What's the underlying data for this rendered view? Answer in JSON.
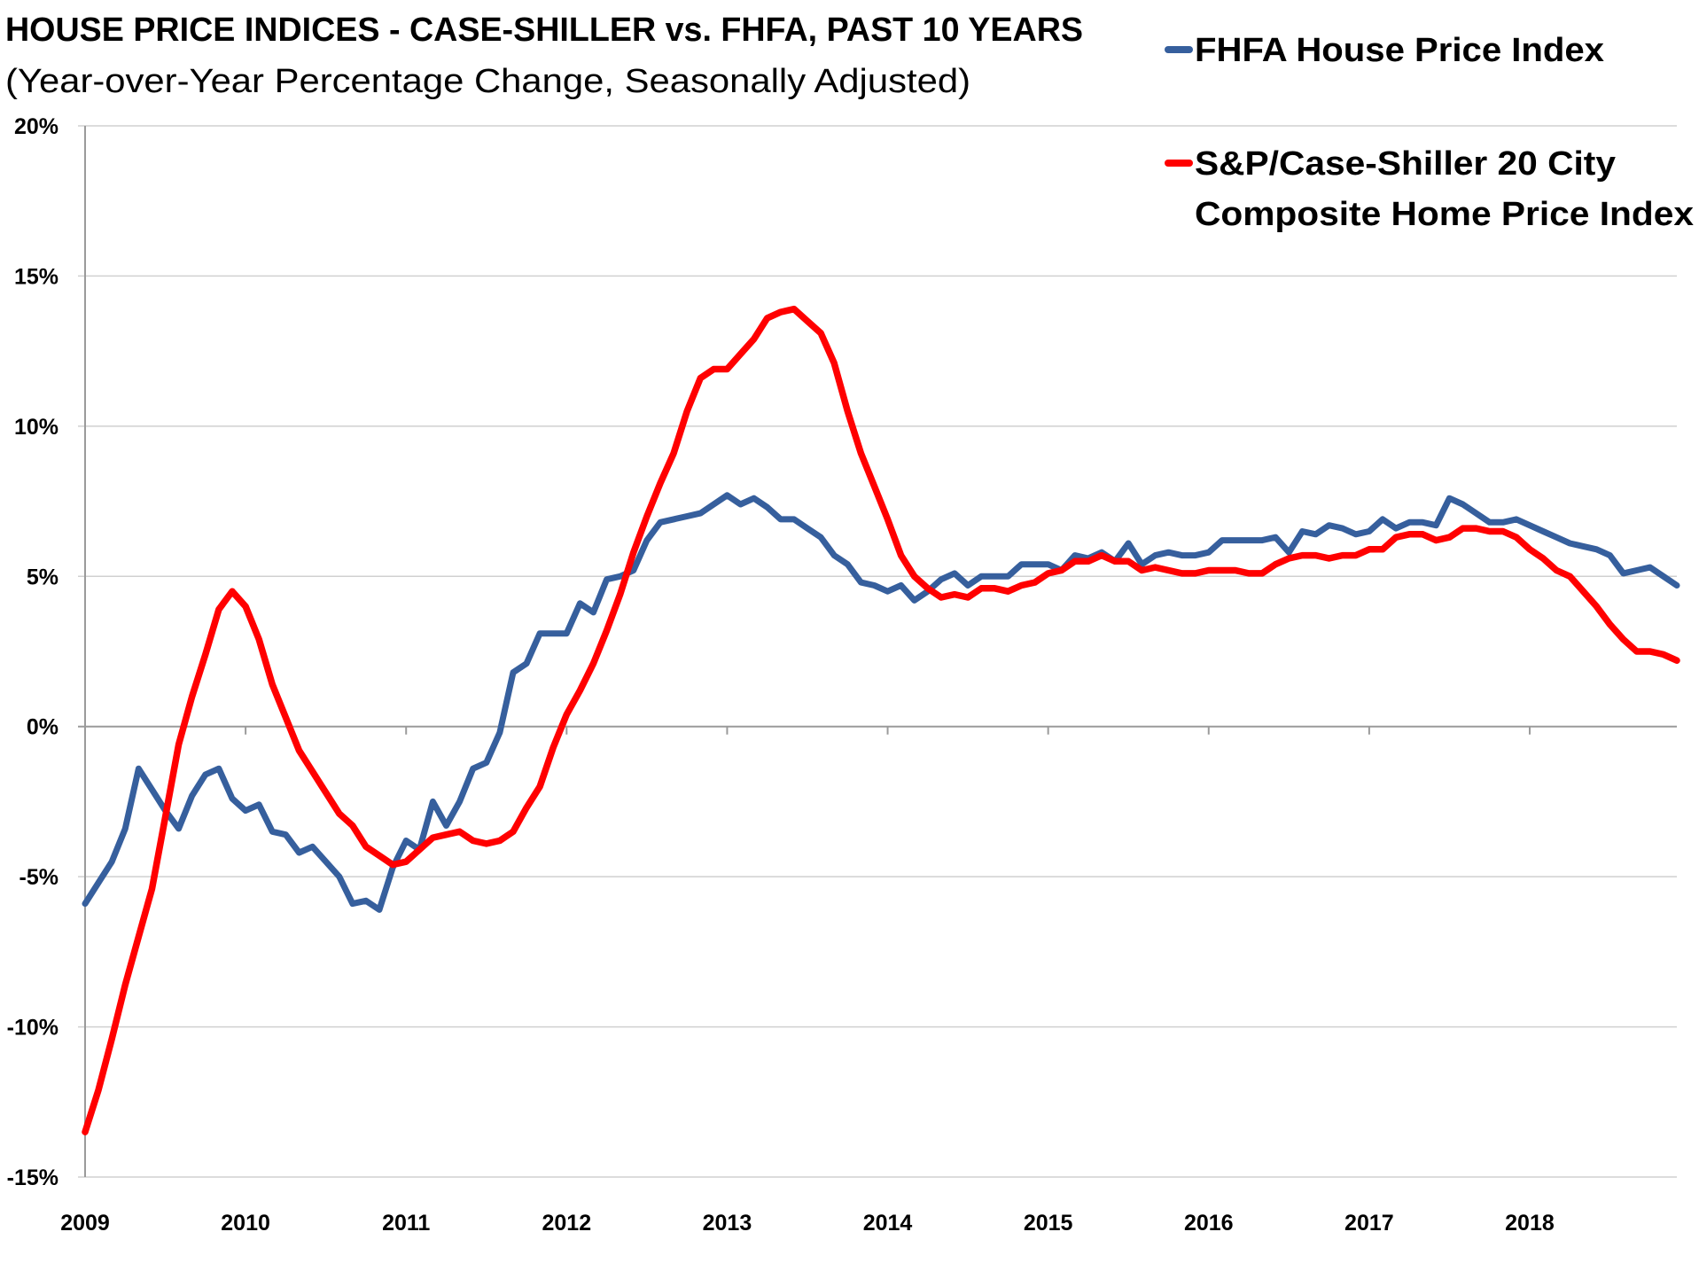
{
  "chart_data": {
    "type": "line",
    "title": "HOUSE PRICE INDICES - CASE-SHILLER vs. FHFA, PAST 10 YEARS",
    "subtitle": "(Year-over-Year Percentage Change, Seasonally Adjusted)",
    "xlabel": "",
    "ylabel": "",
    "x_start": "2009-01",
    "x_frequency": "monthly",
    "x_tick_labels": [
      "2009",
      "2010",
      "2011",
      "2012",
      "2013",
      "2014",
      "2015",
      "2016",
      "2017",
      "2018"
    ],
    "y_tick_labels": [
      "20%",
      "15%",
      "10%",
      "5%",
      "0%",
      "-5%",
      "-10%",
      "-15%"
    ],
    "y_ticks": [
      20,
      15,
      10,
      5,
      0,
      -5,
      -10,
      -15
    ],
    "ylim": [
      -15,
      20
    ],
    "grid": "horizontal",
    "legend_placement": "top-right",
    "series": [
      {
        "name": "FHFA House Price Index",
        "legend_lines": [
          "FHFA House Price Index"
        ],
        "color": "#365F9D",
        "values": [
          -5.9,
          -5.2,
          -4.5,
          -3.4,
          -1.4,
          -2.1,
          -2.8,
          -3.4,
          -2.3,
          -1.6,
          -1.4,
          -2.4,
          -2.8,
          -2.6,
          -3.5,
          -3.6,
          -4.2,
          -4.0,
          -4.5,
          -5.0,
          -5.9,
          -5.8,
          -6.1,
          -4.7,
          -3.8,
          -4.1,
          -2.5,
          -3.3,
          -2.5,
          -1.4,
          -1.2,
          -0.2,
          1.8,
          2.1,
          3.1,
          3.1,
          3.1,
          4.1,
          3.8,
          4.9,
          5.0,
          5.2,
          6.2,
          6.8,
          6.9,
          7.0,
          7.1,
          7.4,
          7.7,
          7.4,
          7.6,
          7.3,
          6.9,
          6.9,
          6.6,
          6.3,
          5.7,
          5.4,
          4.8,
          4.7,
          4.5,
          4.7,
          4.2,
          4.5,
          4.9,
          5.1,
          4.7,
          5.0,
          5.0,
          5.0,
          5.4,
          5.4,
          5.4,
          5.2,
          5.7,
          5.6,
          5.8,
          5.5,
          6.1,
          5.4,
          5.7,
          5.8,
          5.7,
          5.7,
          5.8,
          6.2,
          6.2,
          6.2,
          6.2,
          6.3,
          5.8,
          6.5,
          6.4,
          6.7,
          6.6,
          6.4,
          6.5,
          6.9,
          6.6,
          6.8,
          6.8,
          6.7,
          7.6,
          7.4,
          7.1,
          6.8,
          6.8,
          6.9,
          6.7,
          6.5,
          6.3,
          6.1,
          6.0,
          5.9,
          5.7,
          5.1,
          5.2,
          5.3,
          5.0,
          4.7
        ]
      },
      {
        "name": "S&P/Case-Shiller 20 City Composite Home Price Index",
        "legend_lines": [
          "S&P/Case-Shiller 20 City",
          "Composite Home Price Index"
        ],
        "color": "#FF0000",
        "values": [
          -13.5,
          -12.1,
          -10.4,
          -8.6,
          -7.0,
          -5.4,
          -3.0,
          -0.6,
          1.0,
          2.4,
          3.9,
          4.5,
          4.0,
          2.9,
          1.4,
          0.3,
          -0.8,
          -1.5,
          -2.2,
          -2.9,
          -3.3,
          -4.0,
          -4.3,
          -4.6,
          -4.5,
          -4.1,
          -3.7,
          -3.6,
          -3.5,
          -3.8,
          -3.9,
          -3.8,
          -3.5,
          -2.7,
          -2.0,
          -0.7,
          0.4,
          1.2,
          2.1,
          3.2,
          4.4,
          5.8,
          7.0,
          8.1,
          9.1,
          10.5,
          11.6,
          11.9,
          11.9,
          12.4,
          12.9,
          13.6,
          13.8,
          13.9,
          13.5,
          13.1,
          12.1,
          10.5,
          9.1,
          8.0,
          6.9,
          5.7,
          5.0,
          4.6,
          4.3,
          4.4,
          4.3,
          4.6,
          4.6,
          4.5,
          4.7,
          4.8,
          5.1,
          5.2,
          5.5,
          5.5,
          5.7,
          5.5,
          5.5,
          5.2,
          5.3,
          5.2,
          5.1,
          5.1,
          5.2,
          5.2,
          5.2,
          5.1,
          5.1,
          5.4,
          5.6,
          5.7,
          5.7,
          5.6,
          5.7,
          5.7,
          5.9,
          5.9,
          6.3,
          6.4,
          6.4,
          6.2,
          6.3,
          6.6,
          6.6,
          6.5,
          6.5,
          6.3,
          5.9,
          5.6,
          5.2,
          5.0,
          4.5,
          4.0,
          3.4,
          2.9,
          2.5,
          2.5,
          2.4,
          2.2
        ]
      }
    ]
  }
}
